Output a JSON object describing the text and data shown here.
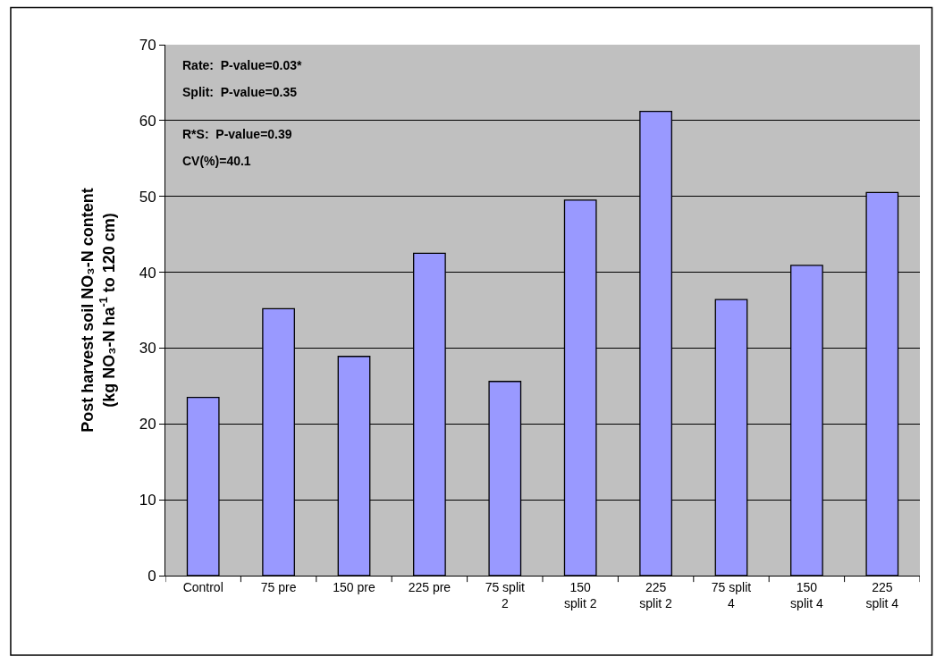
{
  "chart_data": {
    "type": "bar",
    "ylabel": "Post harvest soil NO₃-N content\n(kg NO₃-N ha$^{-1}$ to 120 cm)",
    "categories": [
      "Control",
      "75 pre",
      "150 pre",
      "225 pre",
      "75 split\n2",
      "150\nsplit 2",
      "225\nsplit 2",
      "75 split\n4",
      "150\nsplit 4",
      "225\nsplit 4"
    ],
    "values": [
      23.5,
      35.2,
      28.9,
      42.5,
      25.6,
      49.5,
      61.2,
      36.4,
      40.9,
      50.5
    ],
    "color": "#9999ff",
    "ylim": [
      0,
      70
    ],
    "yticks": [
      0,
      10,
      20,
      30,
      40,
      50,
      60,
      70
    ],
    "grid": "y",
    "annotations": [
      "Rate:  P-value=0.03*",
      "Split:  P-value=0.35",
      "R*S:  P-value=0.39",
      "CV(%)=40.1"
    ]
  }
}
